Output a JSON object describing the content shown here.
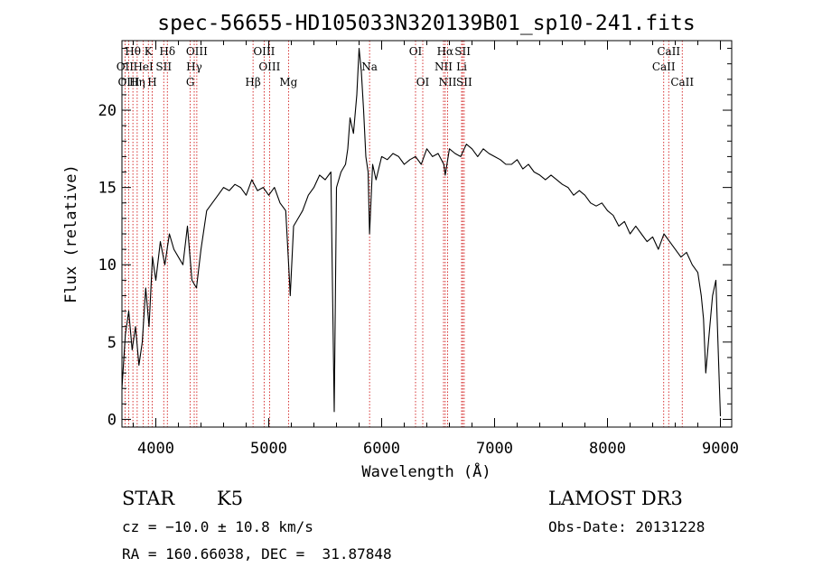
{
  "chart_data": {
    "type": "line",
    "title": "spec-56655-HD105033N320139B01_sp10-241.fits",
    "xlabel": "Wavelength (Å)",
    "ylabel": "Flux (relative)",
    "xlim": [
      3700,
      9100
    ],
    "ylim": [
      -0.5,
      24.5
    ],
    "xticks": [
      4000,
      5000,
      6000,
      7000,
      8000,
      9000
    ],
    "yticks": [
      0,
      5,
      10,
      15,
      20
    ],
    "series": [
      {
        "name": "spectrum",
        "x": [
          3700,
          3730,
          3760,
          3790,
          3820,
          3850,
          3880,
          3910,
          3940,
          3970,
          4000,
          4040,
          4080,
          4120,
          4160,
          4200,
          4240,
          4280,
          4320,
          4360,
          4400,
          4450,
          4500,
          4550,
          4600,
          4650,
          4700,
          4750,
          4800,
          4850,
          4900,
          4950,
          5000,
          5050,
          5100,
          5150,
          5180,
          5190,
          5220,
          5260,
          5300,
          5350,
          5400,
          5450,
          5500,
          5550,
          5580,
          5600,
          5640,
          5680,
          5700,
          5720,
          5750,
          5780,
          5800,
          5820,
          5840,
          5860,
          5880,
          5893,
          5920,
          5950,
          6000,
          6050,
          6100,
          6150,
          6200,
          6250,
          6300,
          6350,
          6400,
          6450,
          6500,
          6550,
          6563,
          6600,
          6650,
          6700,
          6750,
          6800,
          6850,
          6900,
          6950,
          7000,
          7050,
          7100,
          7150,
          7200,
          7250,
          7300,
          7350,
          7400,
          7450,
          7500,
          7550,
          7600,
          7650,
          7700,
          7750,
          7800,
          7850,
          7900,
          7950,
          8000,
          8050,
          8100,
          8150,
          8200,
          8250,
          8300,
          8350,
          8400,
          8450,
          8500,
          8550,
          8600,
          8650,
          8700,
          8750,
          8800,
          8830,
          8850,
          8870,
          8900,
          8930,
          8960,
          9000
        ],
        "y": [
          2.0,
          5.5,
          7.0,
          4.5,
          6.0,
          3.5,
          5.0,
          8.5,
          6.0,
          10.5,
          9.0,
          11.5,
          10.0,
          12.0,
          11.0,
          10.5,
          10.0,
          12.5,
          9.0,
          8.5,
          11.0,
          13.5,
          14.0,
          14.5,
          15.0,
          14.8,
          15.2,
          15.0,
          14.5,
          15.5,
          14.8,
          15.0,
          14.5,
          15.0,
          14.0,
          13.5,
          9.5,
          8.0,
          12.5,
          13.0,
          13.5,
          14.5,
          15.0,
          15.8,
          15.5,
          16.0,
          0.5,
          15.0,
          16.0,
          16.5,
          17.5,
          19.5,
          18.5,
          21.0,
          24.0,
          22.5,
          20.0,
          17.0,
          16.0,
          12.0,
          16.5,
          15.5,
          17.0,
          16.8,
          17.2,
          17.0,
          16.5,
          16.8,
          17.0,
          16.5,
          17.5,
          17.0,
          17.2,
          16.5,
          15.8,
          17.5,
          17.2,
          17.0,
          17.8,
          17.5,
          17.0,
          17.5,
          17.2,
          17.0,
          16.8,
          16.5,
          16.5,
          16.8,
          16.2,
          16.5,
          16.0,
          15.8,
          15.5,
          15.8,
          15.5,
          15.2,
          15.0,
          14.5,
          14.8,
          14.5,
          14.0,
          13.8,
          14.0,
          13.5,
          13.2,
          12.5,
          12.8,
          12.0,
          12.5,
          12.0,
          11.5,
          11.8,
          11.0,
          12.0,
          11.5,
          11.0,
          10.5,
          10.8,
          10.0,
          9.5,
          8.0,
          6.5,
          3.0,
          5.5,
          8.0,
          9.0,
          0.2
        ]
      }
    ],
    "lines": [
      {
        "label": "Hθ",
        "x": 3797,
        "row": 0
      },
      {
        "label": "OII",
        "x": 3727,
        "row": 1
      },
      {
        "label": "OIII",
        "x": 3760,
        "row": 2
      },
      {
        "label": "K",
        "x": 3934,
        "row": 0
      },
      {
        "label": "HeI",
        "x": 3889,
        "row": 1
      },
      {
        "label": "Hη",
        "x": 3835,
        "row": 2
      },
      {
        "label": "Hδ",
        "x": 4102,
        "row": 0
      },
      {
        "label": "SII",
        "x": 4070,
        "row": 1
      },
      {
        "label": "H",
        "x": 3968,
        "row": 2
      },
      {
        "label": "OIII",
        "x": 4363,
        "row": 0
      },
      {
        "label": "Hγ",
        "x": 4340,
        "row": 1
      },
      {
        "label": "G",
        "x": 4305,
        "row": 2
      },
      {
        "label": "OIII",
        "x": 4959,
        "row": 0
      },
      {
        "label": "OIII",
        "x": 5007,
        "row": 1
      },
      {
        "label": "Hβ",
        "x": 4861,
        "row": 2
      },
      {
        "label": "Mg",
        "x": 5175,
        "row": 2
      },
      {
        "label": "Na",
        "x": 5893,
        "row": 1
      },
      {
        "label": "OI",
        "x": 6300,
        "row": 0
      },
      {
        "label": "OI",
        "x": 6364,
        "row": 2
      },
      {
        "label": "Hα",
        "x": 6563,
        "row": 0
      },
      {
        "label": "NII",
        "x": 6548,
        "row": 1
      },
      {
        "label": "NII",
        "x": 6584,
        "row": 2
      },
      {
        "label": "SII",
        "x": 6717,
        "row": 0
      },
      {
        "label": "Li",
        "x": 6708,
        "row": 1
      },
      {
        "label": "SII",
        "x": 6731,
        "row": 2
      },
      {
        "label": "CaII",
        "x": 8542,
        "row": 0
      },
      {
        "label": "CaII",
        "x": 8498,
        "row": 1
      },
      {
        "label": "CaII",
        "x": 8662,
        "row": 2
      }
    ]
  },
  "info": {
    "class": "STAR",
    "subclass": "K5",
    "survey": "LAMOST DR3",
    "cz": "cz = −10.0 ± 10.8 km/s",
    "obs_date": "Obs-Date: 20131228",
    "radec": "RA = 160.66038, DEC =  31.87848"
  }
}
